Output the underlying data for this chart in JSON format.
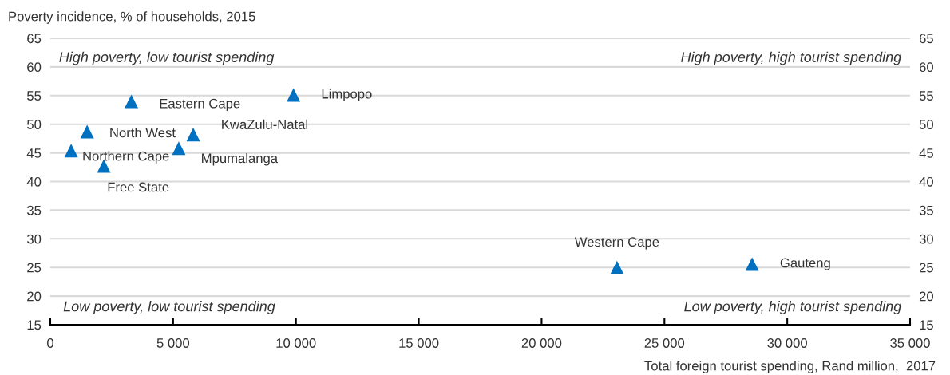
{
  "chart_data": {
    "type": "scatter",
    "ylabel": "Poverty incidence, % of households, 2015",
    "xlabel": "Total foreign tourist spending, Rand million,  2017",
    "x": [
      3300,
      9900,
      1500,
      5820,
      850,
      5230,
      2180,
      23070,
      28570
    ],
    "values": [
      54.0,
      55.1,
      48.7,
      48.2,
      45.4,
      45.8,
      42.7,
      25.0,
      25.6
    ],
    "color": "#0070c0",
    "marker": "triangle",
    "xlim": [
      0,
      35000
    ],
    "xticks": [
      0,
      {
        "value": 5000,
        "label": "5 000"
      },
      {
        "value": 10000,
        "label": "10 000"
      },
      {
        "value": 15000,
        "label": "15 000"
      },
      {
        "value": 20000,
        "label": "20 000"
      },
      {
        "value": 25000,
        "label": "25 000"
      },
      {
        "value": 30000,
        "label": "30 000"
      },
      {
        "value": 35000,
        "label": "35 000"
      }
    ],
    "ylim": [
      15,
      65
    ],
    "yticks": [
      15,
      20,
      25,
      30,
      35,
      40,
      45,
      50,
      55,
      60,
      65
    ],
    "y2lim": [
      15,
      65
    ],
    "y2ticks": [
      15,
      20,
      25,
      30,
      35,
      40,
      45,
      50,
      55,
      60,
      65
    ],
    "grid": "y",
    "annotations": [
      {
        "text": "Eastern Cape",
        "x": 3300,
        "y": 54.0
      },
      {
        "text": "Limpopo",
        "x": 9900,
        "y": 55.1
      },
      {
        "text": "North West",
        "x": 1500,
        "y": 48.7
      },
      {
        "text": "KwaZulu-Natal",
        "x": 5820,
        "y": 48.2
      },
      {
        "text": "Northern Cape",
        "x": 850,
        "y": 45.4
      },
      {
        "text": "Mpumalanga",
        "x": 5230,
        "y": 45.8
      },
      {
        "text": "Free State",
        "x": 2180,
        "y": 42.7
      },
      {
        "text": "Western Cape",
        "x": 23070,
        "y": 25.0
      },
      {
        "text": "Gauteng",
        "x": 28570,
        "y": 25.6
      },
      "High poverty, low tourist spending",
      "High poverty, high tourist spending",
      "Low poverty, low tourist spending",
      "Low poverty, high tourist spending"
    ]
  }
}
